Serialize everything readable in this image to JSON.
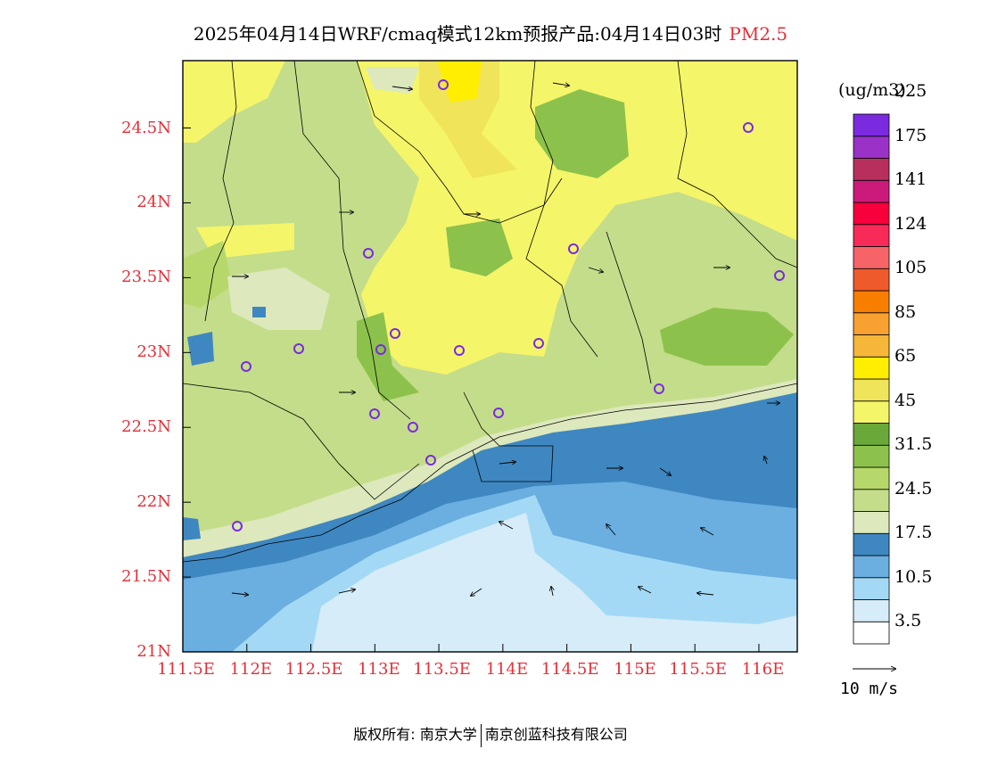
{
  "title": {
    "main": "2025年04月14日WRF/cmaq模式12km预报产品:04月14日03时",
    "pollutant": "PM2.5"
  },
  "colorbar": {
    "unit": "(ug/m3)",
    "colors": [
      "#ffffff",
      "#d6ecf8",
      "#a3d9f5",
      "#6baee0",
      "#3f87c1",
      "#dde8bd",
      "#c4dd8a",
      "#b6d86a",
      "#8cc24b",
      "#6aa83a",
      "#f5f56a",
      "#f0e45a",
      "#ffee00",
      "#f6b63a",
      "#f8a030",
      "#f87e00",
      "#ef5a2c",
      "#f66468",
      "#f82a58",
      "#f8003c",
      "#cc1a7a",
      "#b82f5e",
      "#9a32c8",
      "#7a2be0"
    ],
    "labels": [
      "3.5",
      "10.5",
      "17.5",
      "24.5",
      "31.5",
      "45",
      "65",
      "85",
      "105",
      "124",
      "141",
      "175",
      "225"
    ]
  },
  "axes": {
    "lat_labels": [
      "24.5N",
      "24N",
      "23.5N",
      "23N",
      "22.5N",
      "22N",
      "21.5N",
      "21N"
    ],
    "lon_labels": [
      "111.5E",
      "112E",
      "112.5E",
      "113E",
      "113.5E",
      "114E",
      "114.5E",
      "115E",
      "115.5E",
      "116E"
    ]
  },
  "vector_legend": {
    "label": "10 m/s"
  },
  "copyright": {
    "left": "版权所有: 南京大学",
    "right": "南京创蓝科技有限公司"
  },
  "chart_data": {
    "type": "heatmap",
    "title": "2025年04月14日WRF/cmaq模式12km预报产品:04月14日03时 PM2.5",
    "variable": "PM2.5",
    "unit": "(ug/m3)",
    "xlim": [
      111.5,
      116.3
    ],
    "ylim": [
      21,
      24.95
    ],
    "x_ticks": [
      111.5,
      112,
      112.5,
      113,
      113.5,
      114,
      114.5,
      115,
      115.5,
      116
    ],
    "y_ticks": [
      21,
      21.5,
      22,
      22.5,
      23,
      23.5,
      24,
      24.5
    ],
    "color_levels": [
      3.5,
      10.5,
      17.5,
      24.5,
      31.5,
      45,
      65,
      85,
      105,
      124,
      141,
      175,
      225
    ],
    "wind_vector_reference": "10 m/s"
  }
}
